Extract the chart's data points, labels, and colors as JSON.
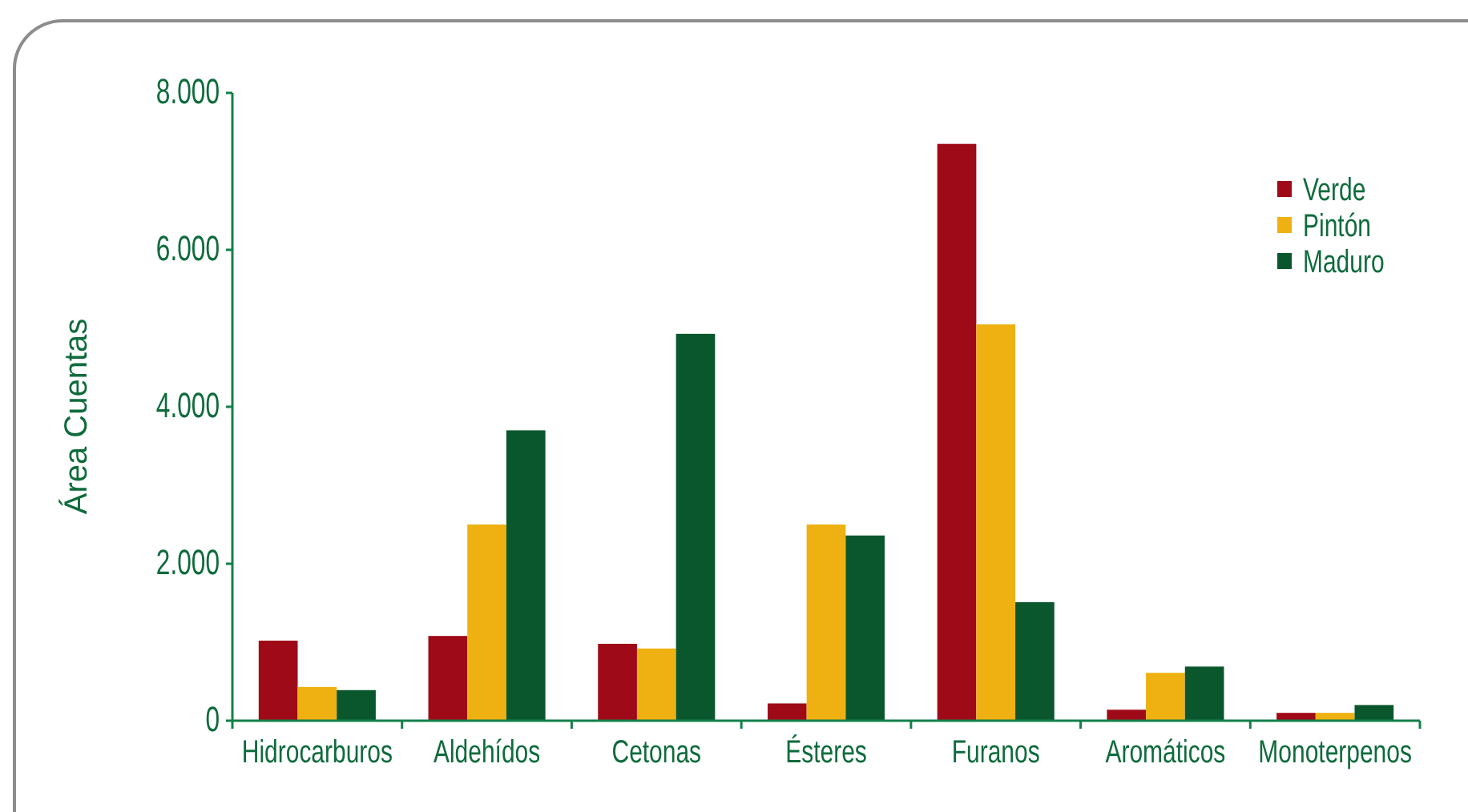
{
  "chart_data": {
    "type": "bar",
    "ylabel": "Área Cuentas",
    "categories": [
      "Hidrocarburos",
      "Aldehídos",
      "Cetonas",
      "Ésteres",
      "Furanos",
      "Aromáticos",
      "Monoterpenos"
    ],
    "series": [
      {
        "name": "Verde",
        "color": "#9e0a17",
        "values": [
          1020,
          1080,
          980,
          220,
          7350,
          140,
          100
        ]
      },
      {
        "name": "Pintón",
        "color": "#eeb111",
        "values": [
          430,
          2500,
          920,
          2500,
          5050,
          610,
          100
        ]
      },
      {
        "name": "Maduro",
        "color": "#0b572d",
        "values": [
          390,
          3700,
          4930,
          2360,
          1510,
          690,
          200
        ]
      }
    ],
    "ylim": [
      0,
      8000
    ],
    "yticks": [
      0,
      {
        "value": 2000,
        "label": "2.000"
      },
      {
        "value": 4000,
        "label": "4.000"
      },
      {
        "value": 6000,
        "label": "6.000"
      },
      {
        "value": 8000,
        "label": "8.000"
      }
    ],
    "legend": "top right"
  }
}
